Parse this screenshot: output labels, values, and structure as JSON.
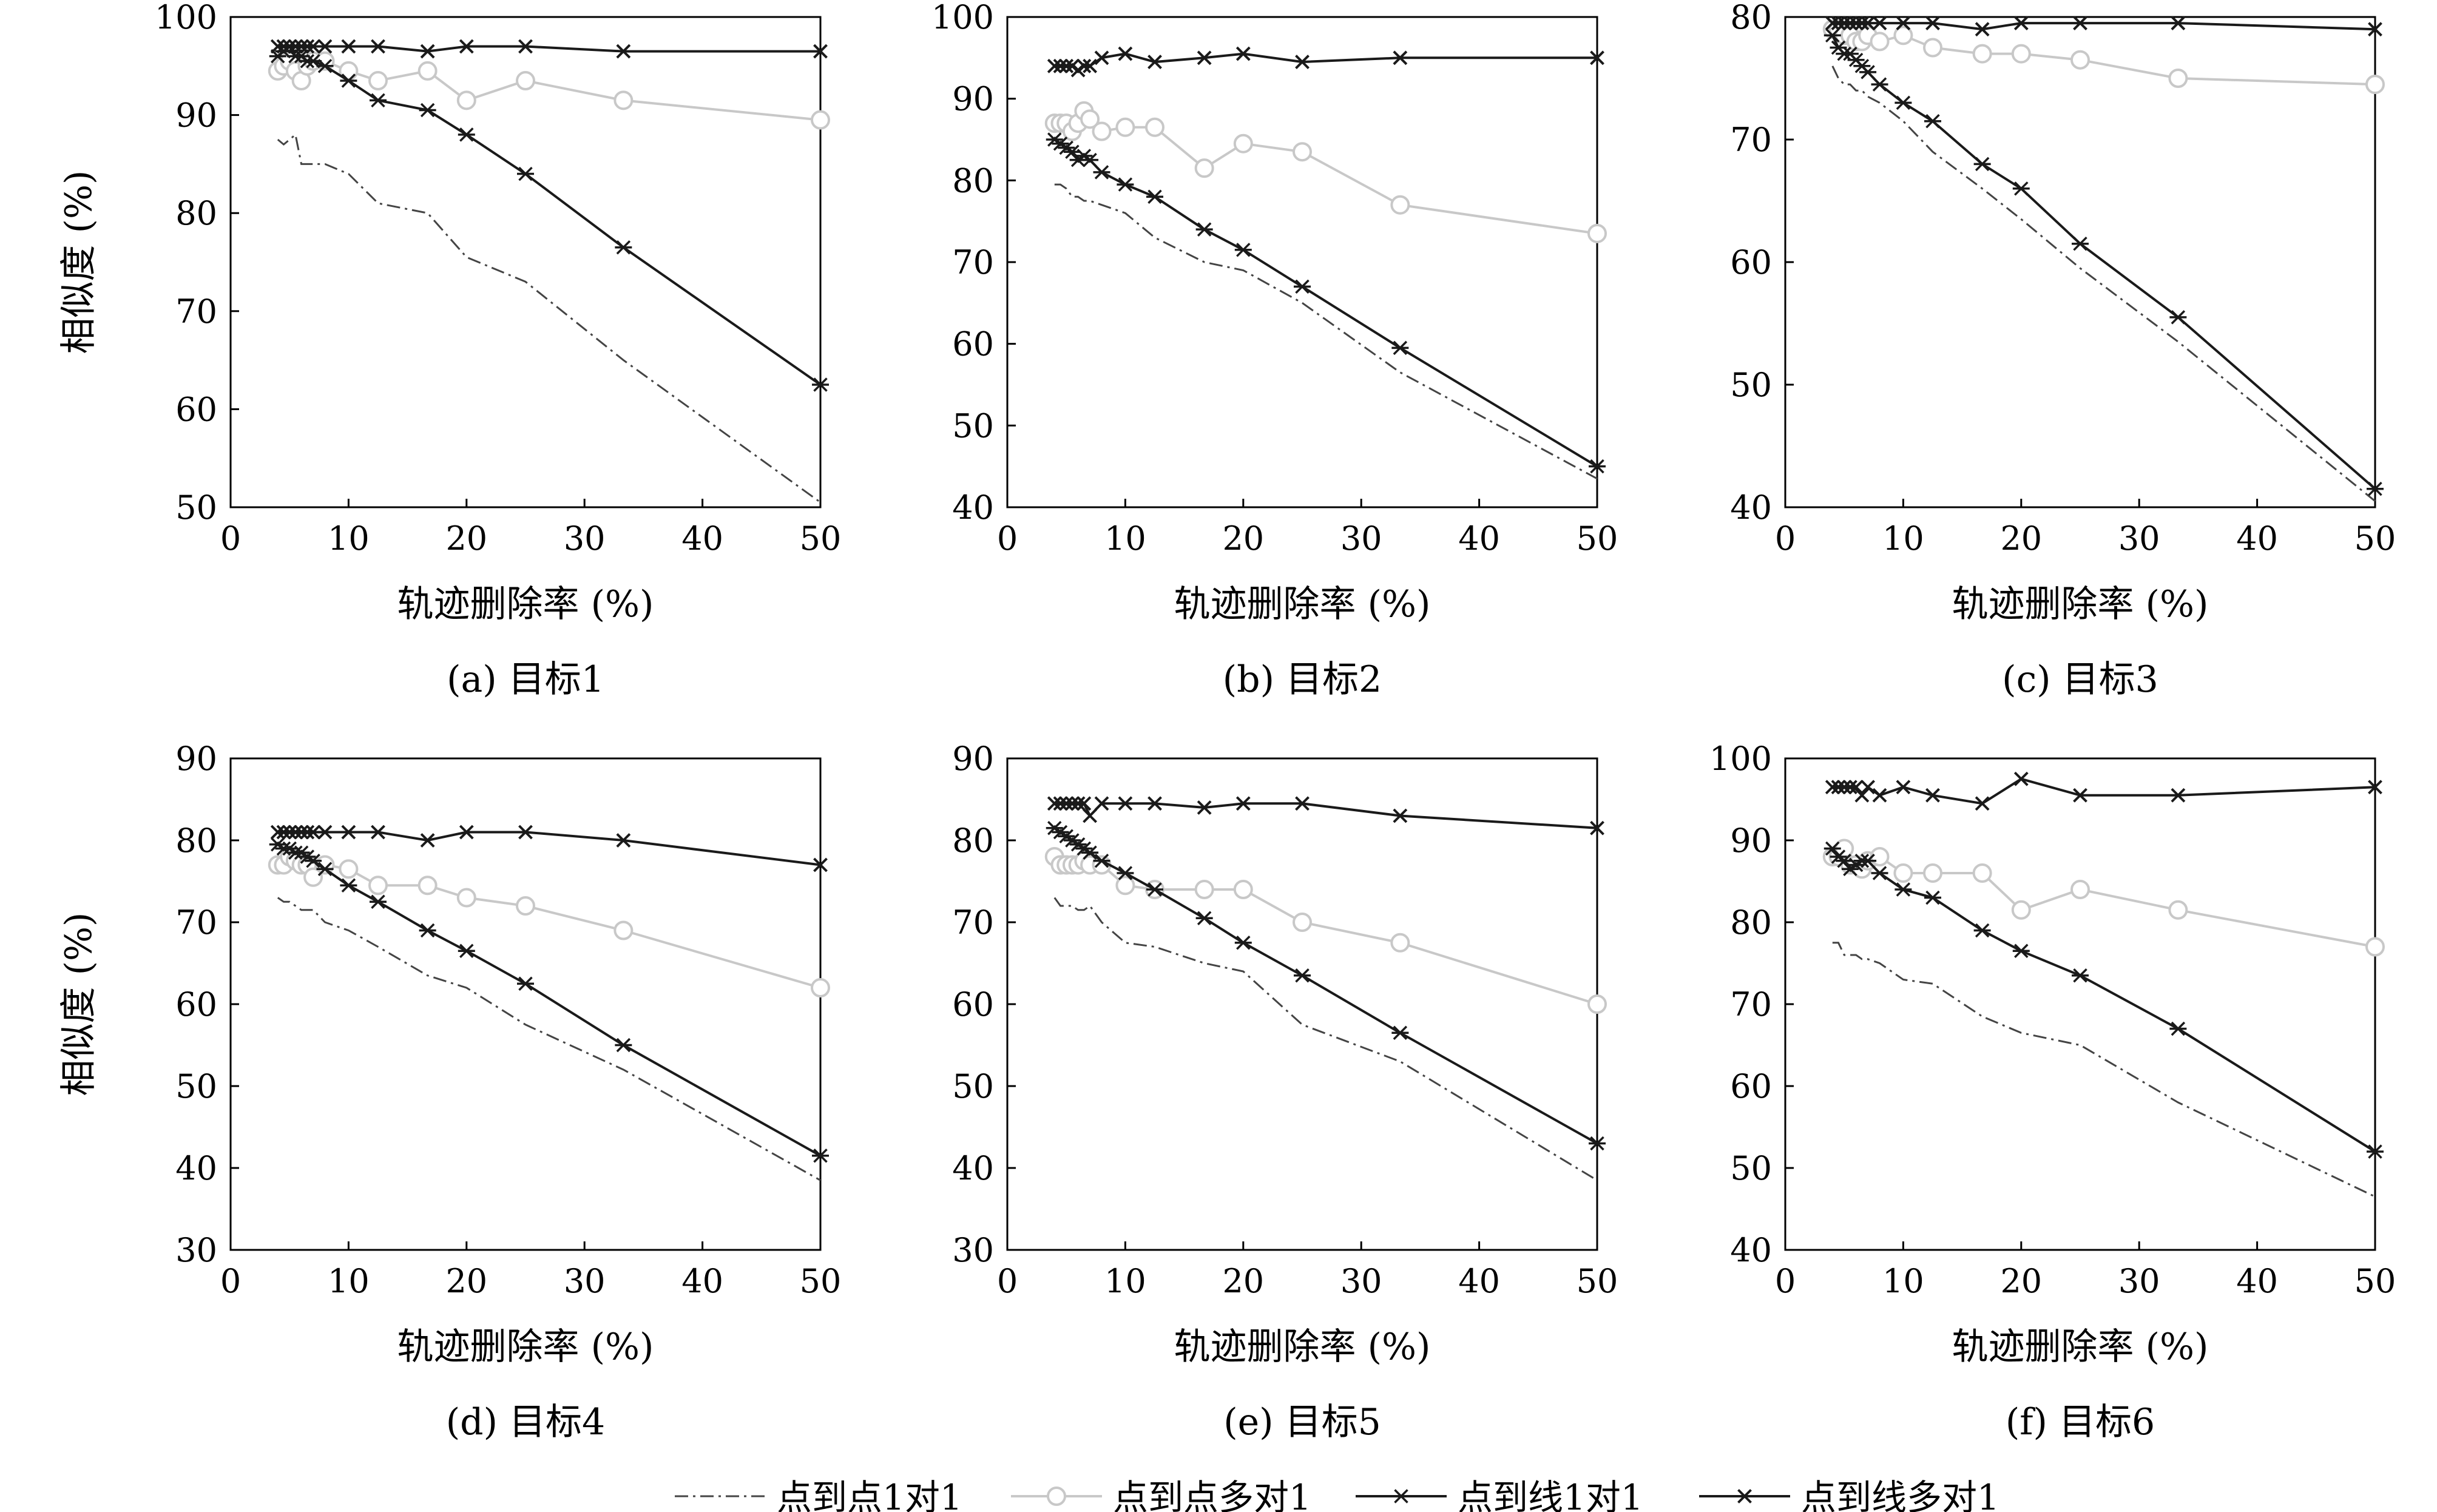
{
  "xlabel": "轨迹删除率 (%)",
  "ylabel": "相似度 (%)",
  "colors": {
    "line": "#1a1a1a",
    "gray_series": "#c8c8c8",
    "dashdot_series": "#444444"
  },
  "legend": {
    "position": "bottom-center",
    "entries": [
      {
        "label": "点到点1对1",
        "style": "dashdot"
      },
      {
        "label": "点到点多对1",
        "style": "circle"
      },
      {
        "label": "点到线1对1",
        "style": "asterisk"
      },
      {
        "label": "点到线多对1",
        "style": "cross"
      }
    ]
  },
  "chart_data": [
    {
      "type": "line",
      "caption": "(a) 目标1",
      "xlim": [
        0,
        50
      ],
      "ylim": [
        50,
        100
      ],
      "xticks": [
        0,
        10,
        20,
        30,
        40,
        50
      ],
      "yticks": [
        50,
        60,
        70,
        80,
        90,
        100
      ],
      "series": [
        {
          "name": "点到点1对1",
          "x": [
            4,
            4.5,
            5,
            5.5,
            6,
            6.5,
            7,
            8,
            10,
            12.5,
            16.7,
            20,
            25,
            33.3,
            50
          ],
          "y": [
            87.5,
            87.0,
            87.5,
            88.0,
            85.0,
            85.0,
            85.0,
            85.0,
            84.0,
            81.0,
            80.0,
            75.5,
            73.0,
            65.0,
            50.5
          ]
        },
        {
          "name": "点到点多对1",
          "x": [
            4,
            4.5,
            5,
            5.5,
            6,
            6.5,
            7,
            8,
            10,
            12.5,
            16.7,
            20,
            25,
            33.3,
            50
          ],
          "y": [
            94.5,
            95.0,
            95.5,
            94.5,
            93.5,
            95.0,
            95.5,
            95.5,
            94.5,
            93.5,
            94.5,
            91.5,
            93.5,
            91.5,
            89.5
          ]
        },
        {
          "name": "点到线1对1",
          "x": [
            4,
            4.5,
            5,
            5.5,
            6,
            6.5,
            7,
            8,
            10,
            12.5,
            16.7,
            20,
            25,
            33.3,
            50
          ],
          "y": [
            96.0,
            96.5,
            97.0,
            96.0,
            96.0,
            95.5,
            95.5,
            95.0,
            93.5,
            91.5,
            90.5,
            88.0,
            84.0,
            76.5,
            62.5
          ]
        },
        {
          "name": "点到线多对1",
          "x": [
            4,
            4.5,
            5,
            5.5,
            6,
            6.5,
            7,
            8,
            10,
            12.5,
            16.7,
            20,
            25,
            33.3,
            50
          ],
          "y": [
            97.0,
            97.0,
            97.0,
            97.0,
            97.0,
            97.0,
            97.0,
            97.0,
            97.0,
            97.0,
            96.5,
            97.0,
            97.0,
            96.5,
            96.5
          ]
        }
      ]
    },
    {
      "type": "line",
      "caption": "(b) 目标2",
      "xlim": [
        0,
        50
      ],
      "ylim": [
        40,
        100
      ],
      "xticks": [
        0,
        10,
        20,
        30,
        40,
        50
      ],
      "yticks": [
        40,
        50,
        60,
        70,
        80,
        90,
        100
      ],
      "series": [
        {
          "name": "点到点1对1",
          "x": [
            4,
            4.5,
            5,
            5.5,
            6,
            6.5,
            7,
            8,
            10,
            12.5,
            16.7,
            20,
            25,
            33.3,
            50
          ],
          "y": [
            79.5,
            79.5,
            79.0,
            78.0,
            78.0,
            77.5,
            77.5,
            77.0,
            76.0,
            73.0,
            70.0,
            69.0,
            65.0,
            56.5,
            43.5
          ]
        },
        {
          "name": "点到点多对1",
          "x": [
            4,
            4.5,
            5,
            5.5,
            6,
            6.5,
            7,
            8,
            10,
            12.5,
            16.7,
            20,
            25,
            33.3,
            50
          ],
          "y": [
            87.0,
            87.0,
            87.0,
            86.0,
            87.0,
            88.5,
            87.5,
            86.0,
            86.5,
            86.5,
            81.5,
            84.5,
            83.5,
            77.0,
            73.5
          ]
        },
        {
          "name": "点到线1对1",
          "x": [
            4,
            4.5,
            5,
            5.5,
            6,
            6.5,
            7,
            8,
            10,
            12.5,
            16.7,
            20,
            25,
            33.3,
            50
          ],
          "y": [
            85.0,
            84.5,
            84.0,
            83.5,
            82.5,
            83.0,
            82.5,
            81.0,
            79.5,
            78.0,
            74.0,
            71.5,
            67.0,
            59.5,
            45.0
          ]
        },
        {
          "name": "点到线多对1",
          "x": [
            4,
            4.5,
            5,
            5.5,
            6,
            6.5,
            7,
            8,
            10,
            12.5,
            16.7,
            20,
            25,
            33.3,
            50
          ],
          "y": [
            94.0,
            94.0,
            94.0,
            94.0,
            93.5,
            94.0,
            94.0,
            95.0,
            95.5,
            94.5,
            95.0,
            95.5,
            94.5,
            95.0,
            95.0
          ]
        }
      ]
    },
    {
      "type": "line",
      "caption": "(c) 目标3",
      "xlim": [
        0,
        50
      ],
      "ylim": [
        40,
        80
      ],
      "xticks": [
        0,
        10,
        20,
        30,
        40,
        50
      ],
      "yticks": [
        40,
        50,
        60,
        70,
        80
      ],
      "series": [
        {
          "name": "点到点1对1",
          "x": [
            4,
            4.5,
            5,
            5.5,
            6,
            6.5,
            7,
            8,
            10,
            12.5,
            16.7,
            20,
            25,
            33.3,
            50
          ],
          "y": [
            76.0,
            75.0,
            74.5,
            74.5,
            74.0,
            74.0,
            73.5,
            73.0,
            71.5,
            69.0,
            66.0,
            63.5,
            59.5,
            53.5,
            40.5
          ]
        },
        {
          "name": "点到点多对1",
          "x": [
            4,
            4.5,
            5,
            5.5,
            6,
            6.5,
            7,
            8,
            10,
            12.5,
            16.7,
            20,
            25,
            33.3,
            50
          ],
          "y": [
            79.0,
            79.0,
            78.5,
            78.5,
            78.0,
            78.0,
            78.5,
            78.0,
            78.5,
            77.5,
            77.0,
            77.0,
            76.5,
            75.0,
            74.5
          ]
        },
        {
          "name": "点到线1对1",
          "x": [
            4,
            4.5,
            5,
            5.5,
            6,
            6.5,
            7,
            8,
            10,
            12.5,
            16.7,
            20,
            25,
            33.3,
            50
          ],
          "y": [
            78.5,
            77.5,
            77.0,
            77.0,
            76.5,
            76.0,
            75.5,
            74.5,
            73.0,
            71.5,
            68.0,
            66.0,
            61.5,
            55.5,
            41.5
          ]
        },
        {
          "name": "点到线多对1",
          "x": [
            4,
            4.5,
            5,
            5.5,
            6,
            6.5,
            7,
            8,
            10,
            12.5,
            16.7,
            20,
            25,
            33.3,
            50
          ],
          "y": [
            79.5,
            79.5,
            79.5,
            79.5,
            79.5,
            79.5,
            79.5,
            79.5,
            79.5,
            79.5,
            79.0,
            79.5,
            79.5,
            79.5,
            79.0
          ]
        }
      ]
    },
    {
      "type": "line",
      "caption": "(d) 目标4",
      "xlim": [
        0,
        50
      ],
      "ylim": [
        30,
        90
      ],
      "xticks": [
        0,
        10,
        20,
        30,
        40,
        50
      ],
      "yticks": [
        30,
        40,
        50,
        60,
        70,
        80,
        90
      ],
      "series": [
        {
          "name": "点到点1对1",
          "x": [
            4,
            4.5,
            5,
            5.5,
            6,
            6.5,
            7,
            8,
            10,
            12.5,
            16.7,
            20,
            25,
            33.3,
            50
          ],
          "y": [
            73.0,
            72.5,
            72.5,
            72.0,
            71.5,
            71.5,
            71.5,
            70.0,
            69.0,
            67.0,
            63.5,
            62.0,
            57.5,
            52.0,
            38.5
          ]
        },
        {
          "name": "点到点多对1",
          "x": [
            4,
            4.5,
            5,
            5.5,
            6,
            6.5,
            7,
            8,
            10,
            12.5,
            16.7,
            20,
            25,
            33.3,
            50
          ],
          "y": [
            77.0,
            77.0,
            78.0,
            77.5,
            77.0,
            77.0,
            75.5,
            77.0,
            76.5,
            74.5,
            74.5,
            73.0,
            72.0,
            69.0,
            62.0
          ]
        },
        {
          "name": "点到线1对1",
          "x": [
            4,
            4.5,
            5,
            5.5,
            6,
            6.5,
            7,
            8,
            10,
            12.5,
            16.7,
            20,
            25,
            33.3,
            50
          ],
          "y": [
            79.5,
            79.0,
            79.0,
            78.5,
            78.5,
            78.0,
            77.5,
            76.5,
            74.5,
            72.5,
            69.0,
            66.5,
            62.5,
            55.0,
            41.5
          ]
        },
        {
          "name": "点到线多对1",
          "x": [
            4,
            4.5,
            5,
            5.5,
            6,
            6.5,
            7,
            8,
            10,
            12.5,
            16.7,
            20,
            25,
            33.3,
            50
          ],
          "y": [
            81.0,
            81.0,
            81.0,
            81.0,
            81.0,
            81.0,
            81.0,
            81.0,
            81.0,
            81.0,
            80.0,
            81.0,
            81.0,
            80.0,
            77.0
          ]
        }
      ]
    },
    {
      "type": "line",
      "caption": "(e) 目标5",
      "xlim": [
        0,
        50
      ],
      "ylim": [
        30,
        90
      ],
      "xticks": [
        0,
        10,
        20,
        30,
        40,
        50
      ],
      "yticks": [
        30,
        40,
        50,
        60,
        70,
        80,
        90
      ],
      "series": [
        {
          "name": "点到点1对1",
          "x": [
            4,
            4.5,
            5,
            5.5,
            6,
            6.5,
            7,
            8,
            10,
            12.5,
            16.7,
            20,
            25,
            33.3,
            50
          ],
          "y": [
            73.0,
            72.0,
            72.0,
            72.0,
            71.5,
            71.5,
            72.0,
            70.0,
            67.5,
            67.0,
            65.0,
            64.0,
            57.5,
            53.0,
            38.5
          ]
        },
        {
          "name": "点到点多对1",
          "x": [
            4,
            4.5,
            5,
            5.5,
            6,
            6.5,
            7,
            8,
            10,
            12.5,
            16.7,
            20,
            25,
            33.3,
            50
          ],
          "y": [
            78.0,
            77.0,
            77.0,
            77.0,
            77.0,
            77.5,
            77.0,
            77.0,
            74.5,
            74.0,
            74.0,
            74.0,
            70.0,
            67.5,
            60.0
          ]
        },
        {
          "name": "点到线1对1",
          "x": [
            4,
            4.5,
            5,
            5.5,
            6,
            6.5,
            7,
            8,
            10,
            12.5,
            16.7,
            20,
            25,
            33.3,
            50
          ],
          "y": [
            81.5,
            81.0,
            80.5,
            80.0,
            79.5,
            79.0,
            78.5,
            77.5,
            76.0,
            74.0,
            70.5,
            67.5,
            63.5,
            56.5,
            43.0
          ]
        },
        {
          "name": "点到线多对1",
          "x": [
            4,
            4.5,
            5,
            5.5,
            6,
            6.5,
            7,
            8,
            10,
            12.5,
            16.7,
            20,
            25,
            33.3,
            50
          ],
          "y": [
            84.5,
            84.5,
            84.5,
            84.5,
            84.5,
            84.5,
            83.0,
            84.5,
            84.5,
            84.5,
            84.0,
            84.5,
            84.5,
            83.0,
            81.5
          ]
        }
      ]
    },
    {
      "type": "line",
      "caption": "(f) 目标6",
      "xlim": [
        0,
        50
      ],
      "ylim": [
        40,
        100
      ],
      "xticks": [
        0,
        10,
        20,
        30,
        40,
        50
      ],
      "yticks": [
        40,
        50,
        60,
        70,
        80,
        90,
        100
      ],
      "series": [
        {
          "name": "点到点1对1",
          "x": [
            4,
            4.5,
            5,
            5.5,
            6,
            6.5,
            7,
            8,
            10,
            12.5,
            16.7,
            20,
            25,
            33.3,
            50
          ],
          "y": [
            77.5,
            77.5,
            76.0,
            76.0,
            76.0,
            75.5,
            75.5,
            75.0,
            73.0,
            72.5,
            68.5,
            66.5,
            65.0,
            58.0,
            46.5
          ]
        },
        {
          "name": "点到点多对1",
          "x": [
            4,
            4.5,
            5,
            5.5,
            6,
            6.5,
            7,
            8,
            10,
            12.5,
            16.7,
            20,
            25,
            33.3,
            50
          ],
          "y": [
            88.0,
            88.0,
            89.0,
            87.0,
            87.0,
            86.5,
            87.5,
            88.0,
            86.0,
            86.0,
            86.0,
            81.5,
            84.0,
            81.5,
            77.0
          ]
        },
        {
          "name": "点到线1对1",
          "x": [
            4,
            4.5,
            5,
            5.5,
            6,
            6.5,
            7,
            8,
            10,
            12.5,
            16.7,
            20,
            25,
            33.3,
            50
          ],
          "y": [
            89.0,
            88.0,
            87.5,
            86.5,
            87.0,
            87.5,
            87.5,
            86.0,
            84.0,
            83.0,
            79.0,
            76.5,
            73.5,
            67.0,
            52.0
          ]
        },
        {
          "name": "点到线多对1",
          "x": [
            4,
            4.5,
            5,
            5.5,
            6,
            6.5,
            7,
            8,
            10,
            12.5,
            16.7,
            20,
            25,
            33.3,
            50
          ],
          "y": [
            96.5,
            96.5,
            96.5,
            96.5,
            96.5,
            95.5,
            96.5,
            95.5,
            96.5,
            95.5,
            94.5,
            97.5,
            95.5,
            95.5,
            96.5
          ]
        }
      ]
    }
  ]
}
